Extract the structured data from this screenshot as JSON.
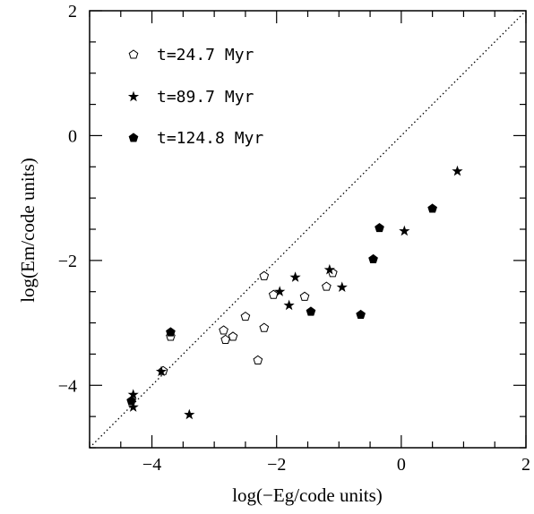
{
  "chart_data": {
    "type": "scatter",
    "xlabel": "log(−Eg/code units)",
    "ylabel": "log(Em/code units)",
    "xlim": [
      -5,
      2
    ],
    "ylim": [
      -5,
      2
    ],
    "x_ticks": [
      -4,
      -2,
      0,
      2
    ],
    "y_ticks": [
      -4,
      -2,
      0,
      2
    ],
    "x_tick_labels": [
      "−4",
      "−2",
      "0",
      "2"
    ],
    "y_tick_labels": [
      "−4",
      "−2",
      "0",
      "2"
    ],
    "grid": false,
    "legend_position": "top-left",
    "reference_line": {
      "type": "y=x",
      "style": "dotted"
    },
    "series": [
      {
        "name": "t=24.7 Myr",
        "marker": "open-pentagon",
        "points": [
          {
            "x": -3.82,
            "y": -3.77
          },
          {
            "x": -3.7,
            "y": -3.22
          },
          {
            "x": -2.85,
            "y": -3.12
          },
          {
            "x": -2.82,
            "y": -3.27
          },
          {
            "x": -2.7,
            "y": -3.22
          },
          {
            "x": -2.5,
            "y": -2.9
          },
          {
            "x": -2.3,
            "y": -3.6
          },
          {
            "x": -2.2,
            "y": -2.25
          },
          {
            "x": -2.2,
            "y": -3.08
          },
          {
            "x": -2.05,
            "y": -2.55
          },
          {
            "x": -1.55,
            "y": -2.58
          },
          {
            "x": -1.2,
            "y": -2.42
          },
          {
            "x": -1.1,
            "y": -2.2
          }
        ]
      },
      {
        "name": "t=89.7 Myr",
        "marker": "star",
        "points": [
          {
            "x": -4.3,
            "y": -4.15
          },
          {
            "x": -4.3,
            "y": -4.35
          },
          {
            "x": -3.85,
            "y": -3.78
          },
          {
            "x": -3.4,
            "y": -4.47
          },
          {
            "x": -1.95,
            "y": -2.5
          },
          {
            "x": -1.8,
            "y": -2.72
          },
          {
            "x": -1.7,
            "y": -2.27
          },
          {
            "x": -1.15,
            "y": -2.15
          },
          {
            "x": -0.95,
            "y": -2.43
          },
          {
            "x": 0.05,
            "y": -1.53
          },
          {
            "x": 0.9,
            "y": -0.57
          }
        ]
      },
      {
        "name": "t=124.8 Myr",
        "marker": "filled-pentagon",
        "points": [
          {
            "x": -4.33,
            "y": -4.25
          },
          {
            "x": -3.7,
            "y": -3.15
          },
          {
            "x": -1.45,
            "y": -2.82
          },
          {
            "x": -0.65,
            "y": -2.87
          },
          {
            "x": -0.45,
            "y": -1.98
          },
          {
            "x": -0.35,
            "y": -1.48
          },
          {
            "x": 0.5,
            "y": -1.17
          }
        ]
      }
    ]
  }
}
